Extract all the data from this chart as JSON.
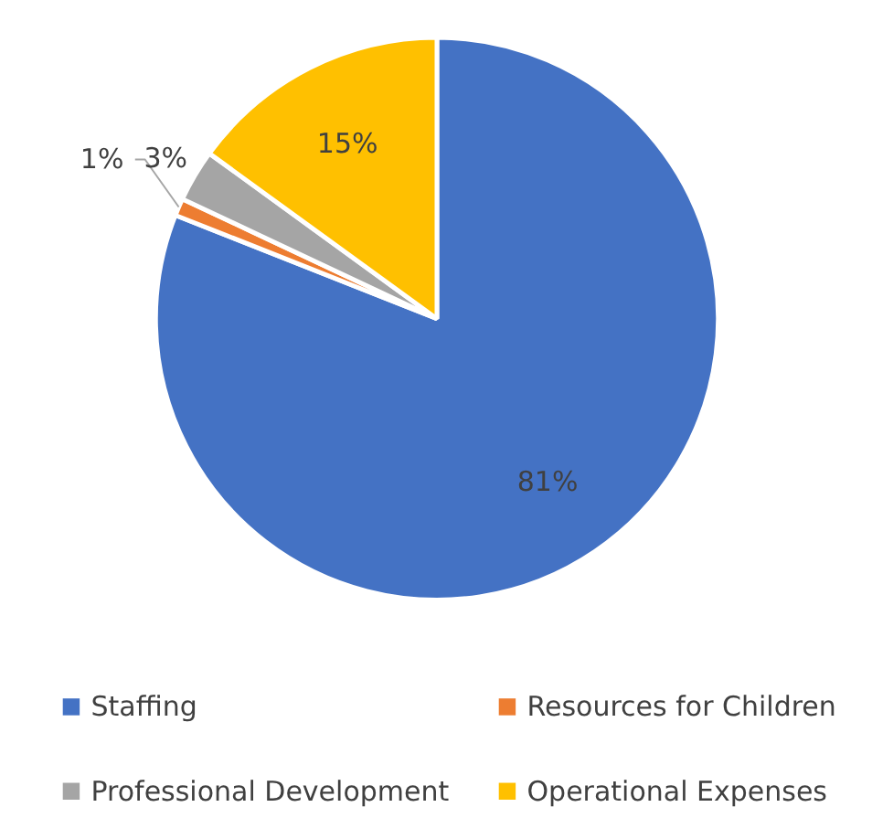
{
  "chart_data": {
    "type": "pie",
    "categories": [
      "Staffing",
      "Resources for Children",
      "Professional Development",
      "Operational Expenses"
    ],
    "values": [
      81,
      1,
      3,
      15
    ],
    "colors": [
      "#4472c4",
      "#ed7d31",
      "#a5a5a5",
      "#ffc000"
    ],
    "value_labels": [
      "81%",
      "1%",
      "3%",
      "15%"
    ],
    "legend": "bottom"
  }
}
